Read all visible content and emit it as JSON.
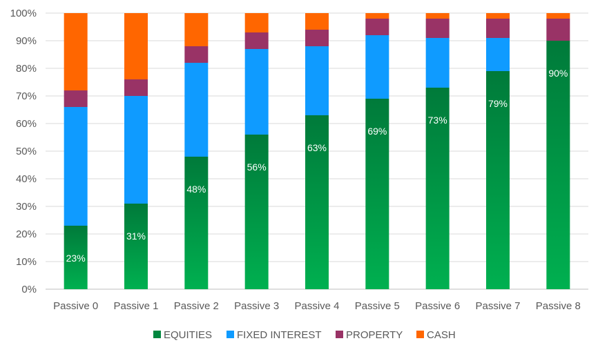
{
  "chart_data": {
    "type": "bar",
    "stacked": true,
    "percent": true,
    "categories": [
      "Passive 0",
      "Passive 1",
      "Passive 2",
      "Passive 3",
      "Passive 4",
      "Passive 5",
      "Passive 6",
      "Passive 7",
      "Passive 8"
    ],
    "series": [
      {
        "name": "EQUITIES",
        "color": "#00a04a",
        "values": [
          23,
          31,
          48,
          56,
          63,
          69,
          73,
          79,
          90
        ],
        "show_labels": true
      },
      {
        "name": "FIXED INTEREST",
        "color": "#0f9bff",
        "values": [
          43,
          39,
          34,
          31,
          25,
          23,
          18,
          12,
          0
        ]
      },
      {
        "name": "PROPERTY",
        "color": "#993366",
        "values": [
          6,
          6,
          6,
          6,
          6,
          6,
          7,
          7,
          8
        ]
      },
      {
        "name": "CASH",
        "color": "#ff6600",
        "values": [
          28,
          24,
          12,
          7,
          6,
          2,
          2,
          2,
          2
        ]
      }
    ],
    "ylim": [
      0,
      100
    ],
    "yticks": [
      0,
      10,
      20,
      30,
      40,
      50,
      60,
      70,
      80,
      90,
      100
    ],
    "ytick_labels": [
      "0%",
      "10%",
      "20%",
      "30%",
      "40%",
      "50%",
      "60%",
      "70%",
      "80%",
      "90%",
      "100%"
    ],
    "data_labels": [
      "23%",
      "31%",
      "48%",
      "56%",
      "63%",
      "69%",
      "73%",
      "79%",
      "90%"
    ],
    "grid": true,
    "legend_position": "bottom"
  }
}
